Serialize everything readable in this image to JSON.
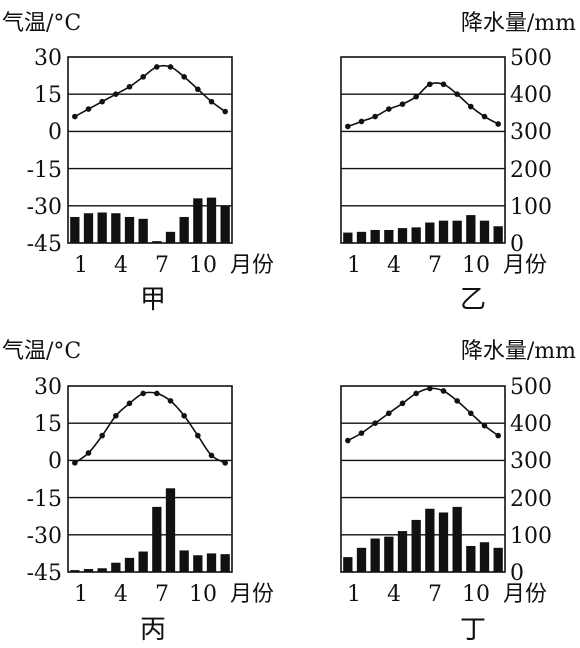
{
  "axis_text": {
    "left_title": "气温/°C",
    "right_title": "降水量/mm",
    "month_unit": "月份",
    "temp_ticks": [
      "30",
      "15",
      "0",
      "-15",
      "-30",
      "-45"
    ],
    "precip_ticks": [
      "500",
      "400",
      "300",
      "200",
      "100",
      "0"
    ],
    "month_ticks": [
      "1",
      "4",
      "7",
      "10"
    ]
  },
  "chart_data": [
    {
      "type": "bar+line",
      "caption": "甲",
      "x": [
        1,
        2,
        3,
        4,
        5,
        6,
        7,
        8,
        9,
        10,
        11,
        12
      ],
      "temp_ylim": [
        -45,
        30
      ],
      "precip_ylim": [
        0,
        500
      ],
      "temperature": [
        6,
        9,
        12,
        15,
        18,
        22,
        26,
        26,
        22,
        17,
        12,
        8
      ],
      "precipitation": [
        70,
        80,
        82,
        80,
        70,
        65,
        5,
        30,
        70,
        120,
        122,
        100
      ]
    },
    {
      "type": "bar+line",
      "caption": "乙",
      "x": [
        1,
        2,
        3,
        4,
        5,
        6,
        7,
        8,
        9,
        10,
        11,
        12
      ],
      "temp_ylim": [
        -45,
        30
      ],
      "precip_ylim": [
        0,
        500
      ],
      "temperature": [
        2,
        4,
        6,
        9,
        11,
        14,
        19,
        19,
        15,
        10,
        6,
        3
      ],
      "precipitation": [
        28,
        30,
        35,
        35,
        40,
        42,
        55,
        60,
        60,
        75,
        60,
        45
      ]
    },
    {
      "type": "bar+line",
      "caption": "丙",
      "x": [
        1,
        2,
        3,
        4,
        5,
        6,
        7,
        8,
        9,
        10,
        11,
        12
      ],
      "temp_ylim": [
        -45,
        30
      ],
      "precip_ylim": [
        0,
        500
      ],
      "temperature": [
        -1,
        3,
        10,
        18,
        23,
        27,
        27,
        24,
        18,
        10,
        2,
        -1
      ],
      "precipitation": [
        5,
        8,
        10,
        25,
        38,
        55,
        175,
        225,
        58,
        45,
        50,
        48
      ]
    },
    {
      "type": "bar+line",
      "caption": "丁",
      "x": [
        1,
        2,
        3,
        4,
        5,
        6,
        7,
        8,
        9,
        10,
        11,
        12
      ],
      "temp_ylim": [
        -45,
        30
      ],
      "precip_ylim": [
        0,
        500
      ],
      "temperature": [
        8,
        11,
        15,
        19,
        23,
        27,
        29,
        28,
        24,
        19,
        14,
        10
      ],
      "precipitation": [
        40,
        65,
        90,
        95,
        110,
        140,
        170,
        160,
        175,
        70,
        80,
        65
      ]
    }
  ]
}
